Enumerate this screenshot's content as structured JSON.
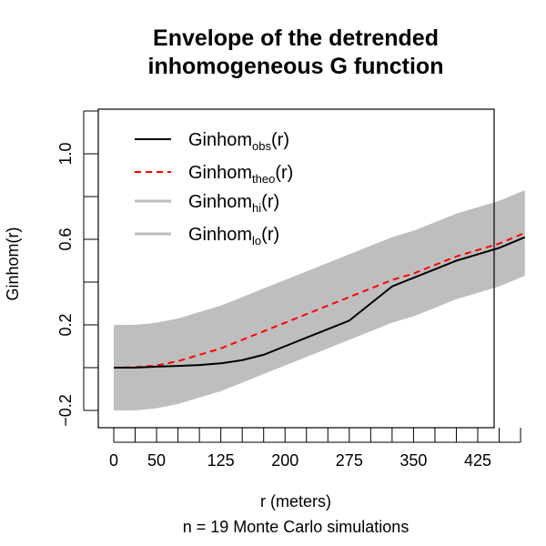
{
  "chart_data": {
    "type": "line",
    "title_lines": [
      "Envelope of the detrended",
      "inhomogeneous G function"
    ],
    "xlabel": "r (meters)",
    "ylabel": "Ginhom(r)",
    "subtitle": "n = 19 Monte Carlo simulations",
    "xlim": [
      0,
      480
    ],
    "ylim": [
      -0.2,
      1.2
    ],
    "xticks": [
      0,
      25,
      50,
      75,
      100,
      125,
      150,
      175,
      200,
      225,
      250,
      275,
      300,
      325,
      350,
      375,
      400,
      425,
      450,
      475
    ],
    "xtick_labels": [
      "0",
      "",
      "50",
      "",
      "",
      "125",
      "",
      "",
      "200",
      "",
      "",
      "275",
      "",
      "",
      "350",
      "",
      "",
      "425",
      "",
      ""
    ],
    "yticks": [
      -0.2,
      0.0,
      0.2,
      0.4,
      0.6,
      0.8,
      1.0,
      1.2
    ],
    "ytick_labels": [
      "−0.2",
      "",
      "0.2",
      "",
      "0.6",
      "",
      "1.0",
      ""
    ],
    "grid": false,
    "legend_position": "top-left",
    "legend": [
      {
        "base": "Ginhom",
        "sub": "obs",
        "suffix": "(r)",
        "style": "solid",
        "color": "#000000"
      },
      {
        "base": "Ginhom",
        "sub": "theo",
        "suffix": "(r)",
        "style": "dashed",
        "color": "#ff0000"
      },
      {
        "base": "Ginhom",
        "sub": "hi",
        "suffix": "(r)",
        "style": "band",
        "color": "#bebebe"
      },
      {
        "base": "Ginhom",
        "sub": "lo",
        "suffix": "(r)",
        "style": "band",
        "color": "#bebebe"
      }
    ],
    "series": [
      {
        "name": "Ginhom_obs(r)",
        "color": "#000000",
        "x": [
          0,
          25,
          50,
          75,
          100,
          125,
          150,
          175,
          200,
          225,
          250,
          275,
          300,
          325,
          350,
          375,
          400,
          425,
          450,
          480
        ],
        "y": [
          0.0,
          0.0,
          0.005,
          0.008,
          0.012,
          0.02,
          0.035,
          0.06,
          0.1,
          0.14,
          0.18,
          0.22,
          0.3,
          0.38,
          0.42,
          0.46,
          0.5,
          0.53,
          0.56,
          0.61
        ]
      },
      {
        "name": "Ginhom_theo(r)",
        "color": "#ff0000",
        "x": [
          0,
          25,
          50,
          75,
          100,
          125,
          150,
          175,
          200,
          225,
          250,
          275,
          300,
          325,
          350,
          375,
          400,
          425,
          450,
          480
        ],
        "y": [
          0.0,
          0.002,
          0.01,
          0.03,
          0.06,
          0.09,
          0.13,
          0.17,
          0.21,
          0.25,
          0.29,
          0.33,
          0.37,
          0.41,
          0.44,
          0.48,
          0.52,
          0.55,
          0.58,
          0.63
        ]
      },
      {
        "name": "Ginhom_hi(r)",
        "color": "#bebebe",
        "x": [
          0,
          25,
          50,
          75,
          100,
          125,
          150,
          175,
          200,
          225,
          250,
          275,
          300,
          325,
          350,
          375,
          400,
          425,
          450,
          480
        ],
        "y": [
          0.2,
          0.2,
          0.21,
          0.23,
          0.26,
          0.29,
          0.33,
          0.37,
          0.41,
          0.45,
          0.49,
          0.53,
          0.57,
          0.61,
          0.64,
          0.68,
          0.72,
          0.75,
          0.78,
          0.83
        ]
      },
      {
        "name": "Ginhom_lo(r)",
        "color": "#bebebe",
        "x": [
          0,
          25,
          50,
          75,
          100,
          125,
          150,
          175,
          200,
          225,
          250,
          275,
          300,
          325,
          350,
          375,
          400,
          425,
          450,
          480
        ],
        "y": [
          -0.2,
          -0.2,
          -0.19,
          -0.17,
          -0.14,
          -0.11,
          -0.07,
          -0.03,
          0.01,
          0.05,
          0.09,
          0.13,
          0.17,
          0.21,
          0.24,
          0.28,
          0.32,
          0.35,
          0.38,
          0.43
        ]
      }
    ]
  }
}
